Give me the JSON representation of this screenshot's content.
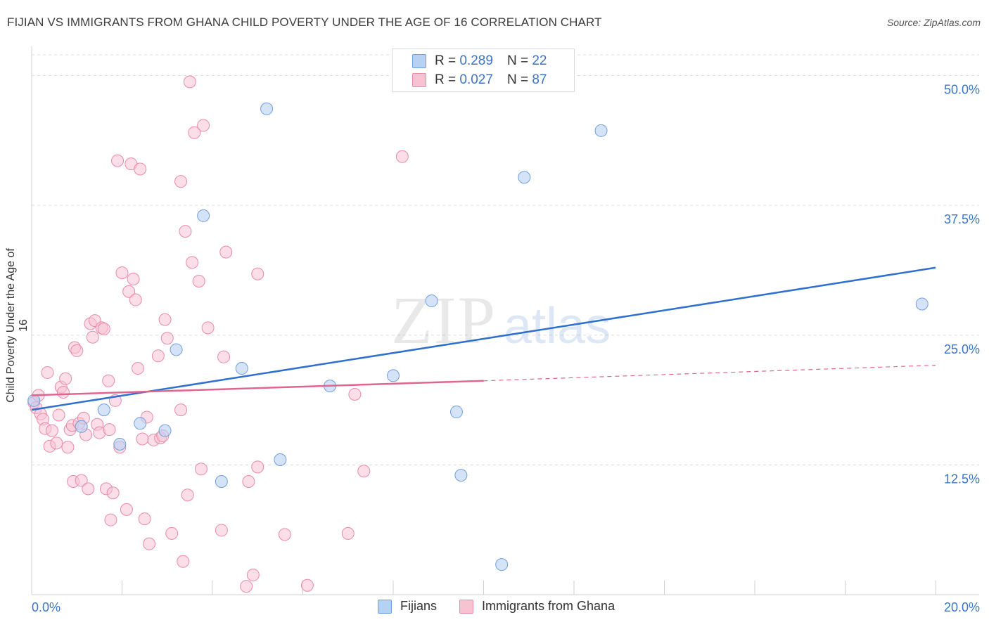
{
  "title": "FIJIAN VS IMMIGRANTS FROM GHANA CHILD POVERTY UNDER THE AGE OF 16 CORRELATION CHART",
  "source": "Source: ZipAtlas.com",
  "watermark": {
    "zip": "ZIP",
    "atlas": "atlas"
  },
  "legend": {
    "r_label": "R =",
    "n_label": "N =",
    "rows": [
      {
        "r": "0.289",
        "n": "22"
      },
      {
        "r": "0.027",
        "n": "87"
      }
    ]
  },
  "colors": {
    "fijians_fill": "#b7d1f3",
    "fijians_stroke": "#6f9fdc",
    "fijians_line": "#2f6fcf",
    "ghana_fill": "#f7c3d3",
    "ghana_stroke": "#e88aab",
    "ghana_line": "#e0668f",
    "tick_label": "#3b74c8",
    "grid": "#dcdcdc"
  },
  "chart_data": {
    "type": "scatter",
    "title": "FIJIAN VS IMMIGRANTS FROM GHANA CHILD POVERTY UNDER THE AGE OF 16 CORRELATION CHART",
    "xlabel": "",
    "ylabel": "Child Poverty Under the Age of 16",
    "xlim": [
      0,
      20
    ],
    "ylim": [
      0,
      52
    ],
    "x_tick_labels": [
      "0.0%",
      "20.0%"
    ],
    "y_ticks": [
      12.5,
      25.0,
      37.5,
      50.0
    ],
    "y_tick_labels": [
      "12.5%",
      "25.0%",
      "37.5%",
      "50.0%"
    ],
    "grid": true,
    "legend_position": "top-center",
    "series": [
      {
        "name": "Fijians",
        "r": 0.289,
        "n": 22,
        "points": [
          [
            0.05,
            18.7
          ],
          [
            1.1,
            16.2
          ],
          [
            1.6,
            17.8
          ],
          [
            1.95,
            14.5
          ],
          [
            2.4,
            16.5
          ],
          [
            2.95,
            15.8
          ],
          [
            3.2,
            23.6
          ],
          [
            3.8,
            36.5
          ],
          [
            4.2,
            10.9
          ],
          [
            4.65,
            21.8
          ],
          [
            5.2,
            46.8
          ],
          [
            5.5,
            13.0
          ],
          [
            6.6,
            20.1
          ],
          [
            8.0,
            21.1
          ],
          [
            8.85,
            28.3
          ],
          [
            9.4,
            17.6
          ],
          [
            9.5,
            11.5
          ],
          [
            10.4,
            2.9
          ],
          [
            10.9,
            40.2
          ],
          [
            12.6,
            44.7
          ],
          [
            19.7,
            28.0
          ]
        ],
        "trend": {
          "x": [
            0,
            20
          ],
          "y": [
            17.8,
            31.5
          ]
        }
      },
      {
        "name": "Immigrants from Ghana",
        "r": 0.027,
        "n": 87,
        "points": [
          [
            0.05,
            18.5
          ],
          [
            0.1,
            18.0
          ],
          [
            0.15,
            19.2
          ],
          [
            0.2,
            17.4
          ],
          [
            0.25,
            16.9
          ],
          [
            0.3,
            16.0
          ],
          [
            0.35,
            21.4
          ],
          [
            0.4,
            14.3
          ],
          [
            0.45,
            15.8
          ],
          [
            0.55,
            14.6
          ],
          [
            0.6,
            17.3
          ],
          [
            0.65,
            20.0
          ],
          [
            0.7,
            19.5
          ],
          [
            0.75,
            20.8
          ],
          [
            0.8,
            14.2
          ],
          [
            0.85,
            15.9
          ],
          [
            0.9,
            16.3
          ],
          [
            0.92,
            10.9
          ],
          [
            0.95,
            23.8
          ],
          [
            1.0,
            23.5
          ],
          [
            1.05,
            16.5
          ],
          [
            1.1,
            11.0
          ],
          [
            1.15,
            17.0
          ],
          [
            1.2,
            15.4
          ],
          [
            1.25,
            10.2
          ],
          [
            1.3,
            26.1
          ],
          [
            1.35,
            24.8
          ],
          [
            1.4,
            26.4
          ],
          [
            1.45,
            16.4
          ],
          [
            1.5,
            15.6
          ],
          [
            1.55,
            25.7
          ],
          [
            1.6,
            25.6
          ],
          [
            1.65,
            10.2
          ],
          [
            1.7,
            20.6
          ],
          [
            1.72,
            15.9
          ],
          [
            1.75,
            7.2
          ],
          [
            1.8,
            9.8
          ],
          [
            1.85,
            18.7
          ],
          [
            1.9,
            41.8
          ],
          [
            1.95,
            14.2
          ],
          [
            2.0,
            31.0
          ],
          [
            2.1,
            8.2
          ],
          [
            2.15,
            29.2
          ],
          [
            2.2,
            41.5
          ],
          [
            2.25,
            30.4
          ],
          [
            2.3,
            28.4
          ],
          [
            2.35,
            21.8
          ],
          [
            2.4,
            41.0
          ],
          [
            2.45,
            15.0
          ],
          [
            2.5,
            7.3
          ],
          [
            2.55,
            17.1
          ],
          [
            2.6,
            4.9
          ],
          [
            2.7,
            14.9
          ],
          [
            2.8,
            23.0
          ],
          [
            2.85,
            15.1
          ],
          [
            2.9,
            15.3
          ],
          [
            2.95,
            26.5
          ],
          [
            3.0,
            24.7
          ],
          [
            3.1,
            5.9
          ],
          [
            3.3,
            17.8
          ],
          [
            3.3,
            39.8
          ],
          [
            3.35,
            3.2
          ],
          [
            3.4,
            35.0
          ],
          [
            3.45,
            9.6
          ],
          [
            3.5,
            49.4
          ],
          [
            3.55,
            32.0
          ],
          [
            3.6,
            44.5
          ],
          [
            3.7,
            30.2
          ],
          [
            3.75,
            12.1
          ],
          [
            3.8,
            45.2
          ],
          [
            3.9,
            25.7
          ],
          [
            4.2,
            6.2
          ],
          [
            4.25,
            22.9
          ],
          [
            4.3,
            33.0
          ],
          [
            4.75,
            0.8
          ],
          [
            4.8,
            10.9
          ],
          [
            4.9,
            1.9
          ],
          [
            5.0,
            12.3
          ],
          [
            5.0,
            30.9
          ],
          [
            5.6,
            5.8
          ],
          [
            6.1,
            0.9
          ],
          [
            7.0,
            5.9
          ],
          [
            7.15,
            19.3
          ],
          [
            7.35,
            11.9
          ],
          [
            8.2,
            42.2
          ]
        ],
        "trend": {
          "x": [
            0,
            10
          ],
          "y": [
            19.2,
            20.6
          ]
        },
        "trend_dashed": {
          "x": [
            10,
            20
          ],
          "y": [
            20.6,
            22.1
          ]
        }
      }
    ]
  }
}
